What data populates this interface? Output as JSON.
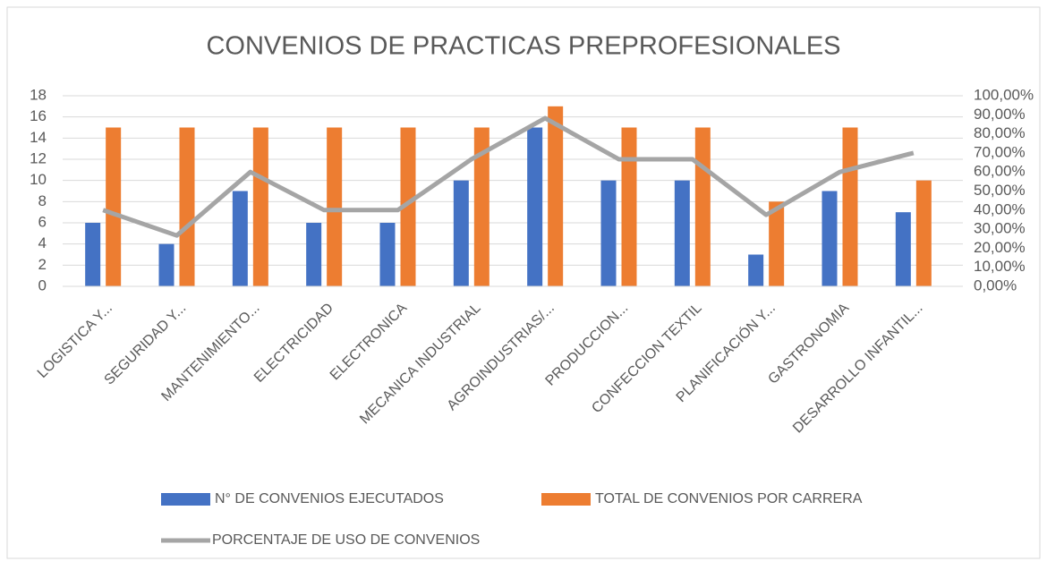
{
  "chart_data": {
    "type": "bar_line",
    "title": "CONVENIOS DE PRACTICAS PREPROFESIONALES",
    "categories": [
      "LOGISTICA Y...",
      "SEGURIDAD Y...",
      "MANTENIMIENTO...",
      "ELECTRICIDAD",
      "ELECTRONICA",
      "MECANICA INDUSTRIAL",
      "AGROINDUSTRIAS/...",
      "PRODUCCION...",
      "CONFECCION TEXTIL",
      "PLANIFICACIÓN Y...",
      "GASTRONOMIA",
      "DESARROLLO INFANTIL..."
    ],
    "series": [
      {
        "name": "N° DE CONVENIOS EJECUTADOS",
        "type": "bar",
        "color": "#4472c4",
        "values": [
          6,
          4,
          9,
          6,
          6,
          10,
          15,
          10,
          10,
          3,
          9,
          7
        ]
      },
      {
        "name": "TOTAL DE CONVENIOS POR CARRERA",
        "type": "bar",
        "color": "#ed7d31",
        "values": [
          15,
          15,
          15,
          15,
          15,
          15,
          17,
          15,
          15,
          8,
          15,
          10
        ]
      },
      {
        "name": "PORCENTAJE DE USO DE CONVENIOS",
        "type": "line",
        "axis": "y2",
        "color": "#a5a5a5",
        "values": [
          40,
          26.67,
          60,
          40,
          40,
          66.67,
          88.24,
          66.67,
          66.67,
          37.5,
          60,
          70
        ]
      }
    ],
    "ylim": [
      0,
      18
    ],
    "yticks": [
      0,
      2,
      4,
      6,
      8,
      10,
      12,
      14,
      16,
      18
    ],
    "y2lim": [
      0,
      100
    ],
    "y2ticks": [
      {
        "value": 0,
        "label": "0,00%"
      },
      {
        "value": 10,
        "label": "10,00%"
      },
      {
        "value": 20,
        "label": "20,00%"
      },
      {
        "value": 30,
        "label": "30,00%"
      },
      {
        "value": 40,
        "label": "40,00%"
      },
      {
        "value": 50,
        "label": "50,00%"
      },
      {
        "value": 60,
        "label": "60,00%"
      },
      {
        "value": 70,
        "label": "70,00%"
      },
      {
        "value": 80,
        "label": "80,00%"
      },
      {
        "value": 90,
        "label": "90,00%"
      },
      {
        "value": 100,
        "label": "100,00%"
      }
    ],
    "grid": true,
    "legend": "bottom"
  }
}
